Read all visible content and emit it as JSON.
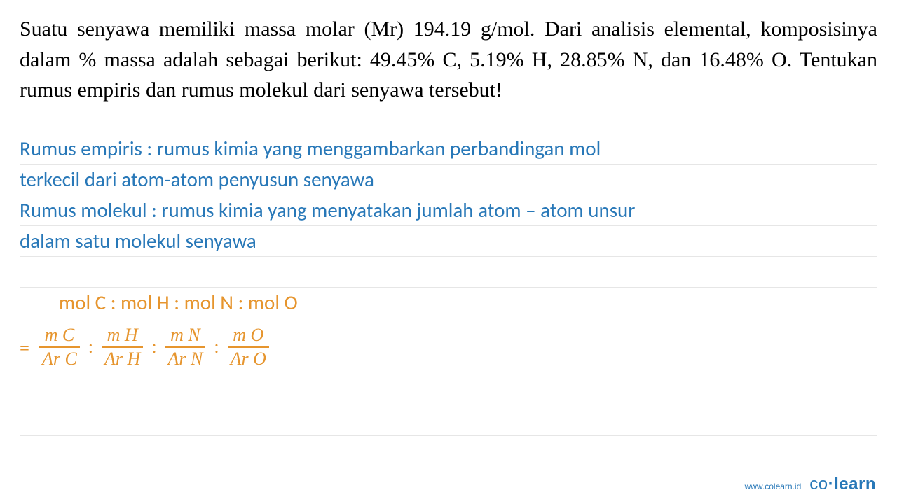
{
  "question": {
    "text": "Suatu senyawa memiliki massa molar (Mr) 194.19 g/mol. Dari analisis elemental, komposisinya dalam % massa adalah sebagai berikut: 49.45% C, 5.19% H, 28.85% N, dan 16.48% O. Tentukan rumus empiris dan rumus molekul dari senyawa tersebut!",
    "color": "#000000",
    "fontsize": 30
  },
  "notes": {
    "lines": [
      "Rumus empiris : rumus kimia yang menggambarkan perbandingan mol",
      "terkecil dari atom-atom penyusun senyawa",
      "Rumus molekul : rumus kimia yang menyatakan jumlah atom – atom unsur",
      "dalam satu molekul senyawa"
    ],
    "text_color": "#2878b8",
    "line_color": "#e6e6e6",
    "fontsize": 29
  },
  "formula": {
    "heading": "mol C : mol H : mol N : mol O",
    "equals": "=",
    "fractions": [
      {
        "top": "m C",
        "bot": "Ar C"
      },
      {
        "top": "m H",
        "bot": "Ar H"
      },
      {
        "top": "m N",
        "bot": "Ar N"
      },
      {
        "top": "m O",
        "bot": "Ar O"
      }
    ],
    "separator": ":",
    "color": "#e6952e",
    "fontsize": 26
  },
  "footer": {
    "url": "www.colearn.id",
    "logo_co": "co",
    "logo_dot": "·",
    "logo_learn": "learn",
    "color": "#2878b8"
  }
}
